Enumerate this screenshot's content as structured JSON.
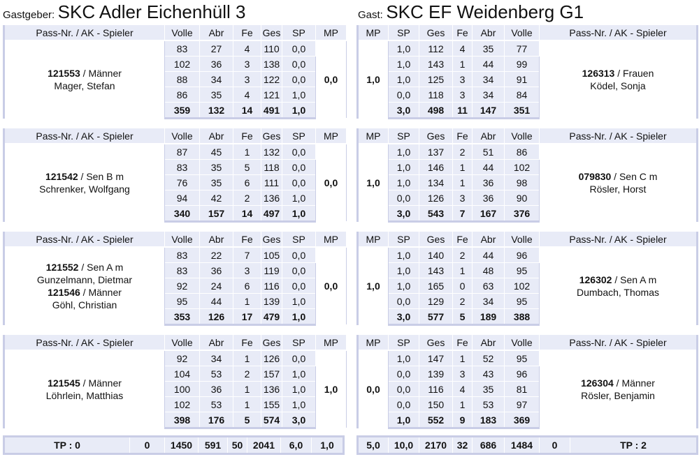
{
  "home": {
    "prefix": "Gastgeber:",
    "name": "SKC Adler Eichenhüll 3"
  },
  "guest": {
    "prefix": "Gast:",
    "name": "SKC EF Weidenberg G1"
  },
  "headers": {
    "pass": "Pass-Nr. / AK - Spieler",
    "volle": "Volle",
    "abr": "Abr",
    "fe": "Fe",
    "ges": "Ges",
    "sp": "SP",
    "mp": "MP"
  },
  "games": [
    {
      "home": {
        "players": [
          {
            "pass": "121553",
            "ak": " / Männer",
            "name": "Mager, Stefan"
          }
        ],
        "rows": [
          [
            "83",
            "27",
            "4",
            "110",
            "0,0"
          ],
          [
            "102",
            "36",
            "3",
            "138",
            "0,0"
          ],
          [
            "88",
            "34",
            "3",
            "122",
            "0,0"
          ],
          [
            "86",
            "35",
            "4",
            "121",
            "1,0"
          ]
        ],
        "sum": [
          "359",
          "132",
          "14",
          "491",
          "1,0"
        ],
        "mp": "0,0"
      },
      "guest": {
        "players": [
          {
            "pass": "126313",
            "ak": " / Frauen",
            "name": "Ködel, Sonja"
          }
        ],
        "rows": [
          [
            "1,0",
            "112",
            "4",
            "35",
            "77"
          ],
          [
            "1,0",
            "143",
            "1",
            "44",
            "99"
          ],
          [
            "1,0",
            "125",
            "3",
            "34",
            "91"
          ],
          [
            "0,0",
            "118",
            "3",
            "34",
            "84"
          ]
        ],
        "sum": [
          "3,0",
          "498",
          "11",
          "147",
          "351"
        ],
        "mp": "1,0"
      }
    },
    {
      "home": {
        "players": [
          {
            "pass": "121542",
            "ak": " / Sen B m",
            "name": "Schrenker, Wolfgang"
          }
        ],
        "rows": [
          [
            "87",
            "45",
            "1",
            "132",
            "0,0"
          ],
          [
            "83",
            "35",
            "5",
            "118",
            "0,0"
          ],
          [
            "76",
            "35",
            "6",
            "111",
            "0,0"
          ],
          [
            "94",
            "42",
            "2",
            "136",
            "1,0"
          ]
        ],
        "sum": [
          "340",
          "157",
          "14",
          "497",
          "1,0"
        ],
        "mp": "0,0"
      },
      "guest": {
        "players": [
          {
            "pass": "079830",
            "ak": " / Sen C m",
            "name": "Rösler, Horst"
          }
        ],
        "rows": [
          [
            "1,0",
            "137",
            "2",
            "51",
            "86"
          ],
          [
            "1,0",
            "146",
            "1",
            "44",
            "102"
          ],
          [
            "1,0",
            "134",
            "1",
            "36",
            "98"
          ],
          [
            "0,0",
            "126",
            "3",
            "36",
            "90"
          ]
        ],
        "sum": [
          "3,0",
          "543",
          "7",
          "167",
          "376"
        ],
        "mp": "1,0"
      }
    },
    {
      "home": {
        "players": [
          {
            "pass": "121552",
            "ak": " / Sen A m",
            "name": "Gunzelmann, Dietmar"
          },
          {
            "pass": "121546",
            "ak": " / Männer",
            "name": "Göhl, Christian"
          }
        ],
        "rows": [
          [
            "83",
            "22",
            "7",
            "105",
            "0,0"
          ],
          [
            "83",
            "36",
            "3",
            "119",
            "0,0"
          ],
          [
            "92",
            "24",
            "6",
            "116",
            "0,0"
          ],
          [
            "95",
            "44",
            "1",
            "139",
            "1,0"
          ]
        ],
        "sum": [
          "353",
          "126",
          "17",
          "479",
          "1,0"
        ],
        "mp": "0,0"
      },
      "guest": {
        "players": [
          {
            "pass": "126302",
            "ak": " / Sen A m",
            "name": "Dumbach, Thomas"
          }
        ],
        "rows": [
          [
            "1,0",
            "140",
            "2",
            "44",
            "96"
          ],
          [
            "1,0",
            "143",
            "1",
            "48",
            "95"
          ],
          [
            "1,0",
            "165",
            "0",
            "63",
            "102"
          ],
          [
            "0,0",
            "129",
            "2",
            "34",
            "95"
          ]
        ],
        "sum": [
          "3,0",
          "577",
          "5",
          "189",
          "388"
        ],
        "mp": "1,0"
      }
    },
    {
      "home": {
        "players": [
          {
            "pass": "121545",
            "ak": " / Männer",
            "name": "Löhrlein, Matthias"
          }
        ],
        "rows": [
          [
            "92",
            "34",
            "1",
            "126",
            "0,0"
          ],
          [
            "104",
            "53",
            "2",
            "157",
            "1,0"
          ],
          [
            "100",
            "36",
            "1",
            "136",
            "1,0"
          ],
          [
            "102",
            "53",
            "1",
            "155",
            "1,0"
          ]
        ],
        "sum": [
          "398",
          "176",
          "5",
          "574",
          "3,0"
        ],
        "mp": "1,0"
      },
      "guest": {
        "players": [
          {
            "pass": "126304",
            "ak": " / Männer",
            "name": "Rösler, Benjamin"
          }
        ],
        "rows": [
          [
            "1,0",
            "147",
            "1",
            "52",
            "95"
          ],
          [
            "0,0",
            "139",
            "3",
            "43",
            "96"
          ],
          [
            "0,0",
            "116",
            "4",
            "35",
            "81"
          ],
          [
            "0,0",
            "150",
            "1",
            "53",
            "97"
          ]
        ],
        "sum": [
          "1,0",
          "552",
          "9",
          "183",
          "369"
        ],
        "mp": "0,0"
      }
    }
  ],
  "totals": {
    "home": [
      "TP : 0",
      "0",
      "1450",
      "591",
      "50",
      "2041",
      "6,0",
      "1,0"
    ],
    "guest": [
      "5,0",
      "10,0",
      "2170",
      "32",
      "686",
      "1484",
      "0",
      "TP : 2"
    ]
  }
}
